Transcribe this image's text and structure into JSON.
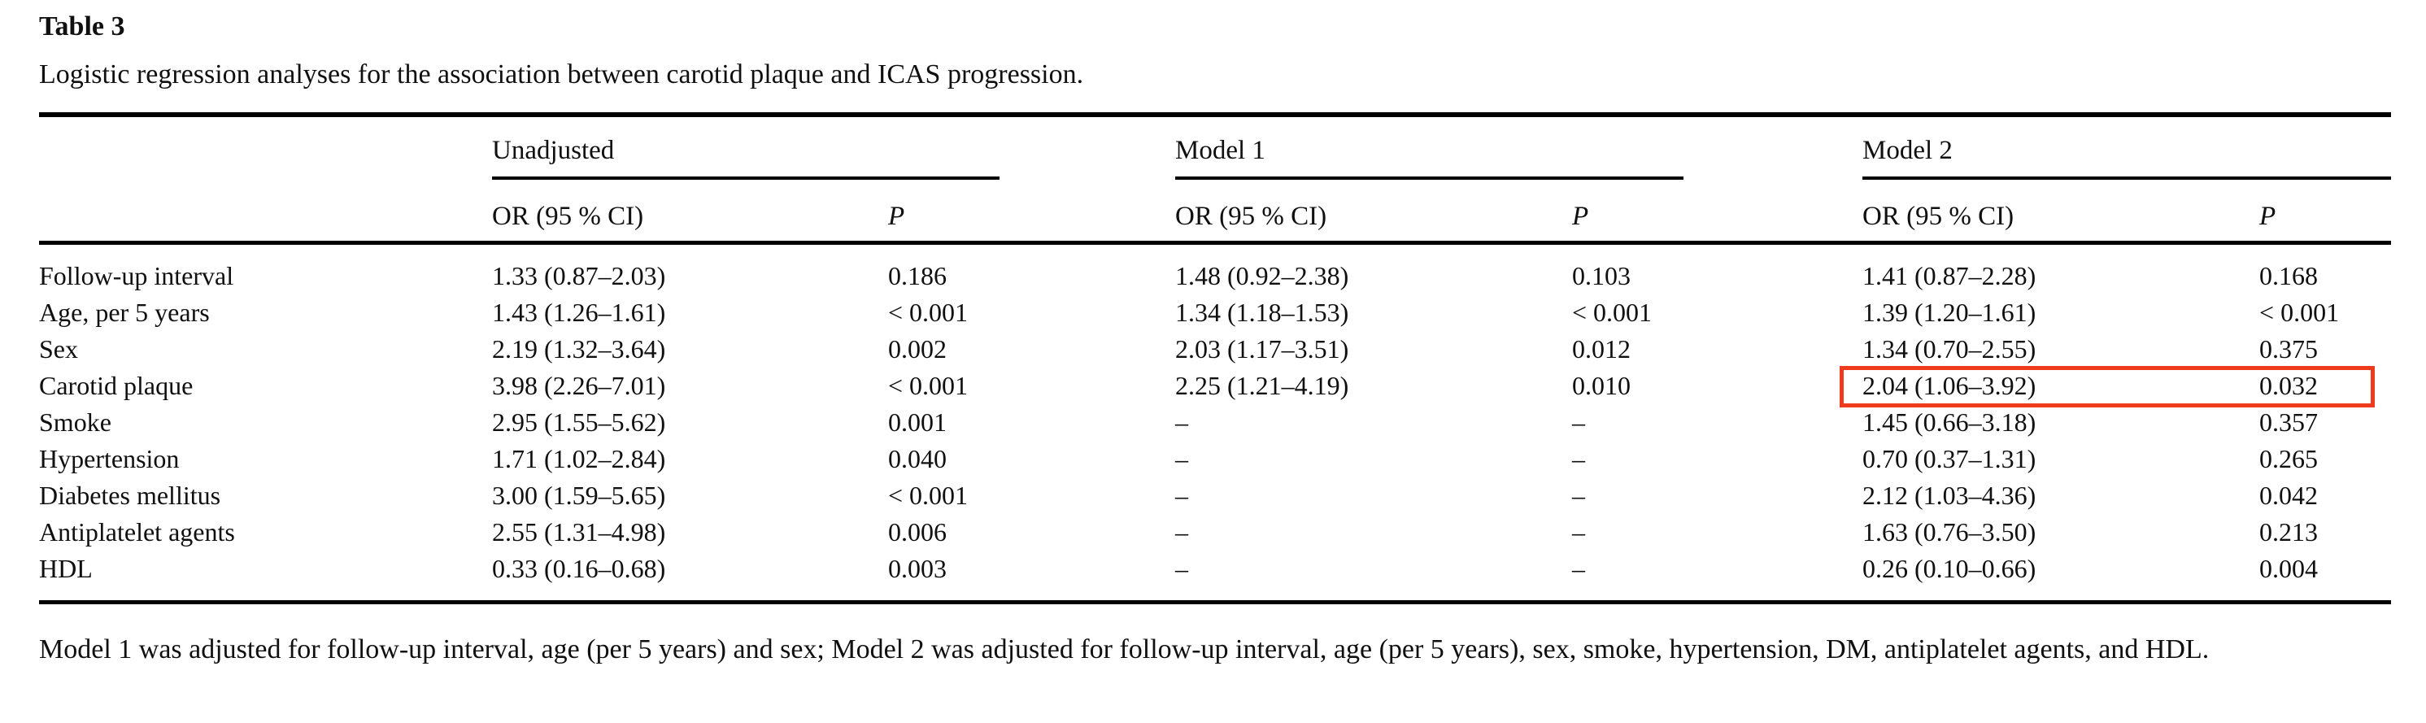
{
  "table": {
    "label": "Table 3",
    "caption": "Logistic regression analyses for the association between carotid plaque and ICAS progression.",
    "column_groups": [
      {
        "label": "Unadjusted",
        "or_header": "OR (95 % CI)",
        "p_header": "P"
      },
      {
        "label": "Model 1",
        "or_header": "OR (95 % CI)",
        "p_header": "P"
      },
      {
        "label": "Model 2",
        "or_header": "OR (95 % CI)",
        "p_header": "P"
      }
    ],
    "rows": [
      {
        "label": "Follow-up interval",
        "unadjusted_or": "1.33 (0.87–2.03)",
        "unadjusted_p": "0.186",
        "model1_or": "1.48 (0.92–2.38)",
        "model1_p": "0.103",
        "model2_or": "1.41 (0.87–2.28)",
        "model2_p": "0.168"
      },
      {
        "label": "Age, per 5 years",
        "unadjusted_or": "1.43 (1.26–1.61)",
        "unadjusted_p": "< 0.001",
        "model1_or": "1.34 (1.18–1.53)",
        "model1_p": "< 0.001",
        "model2_or": "1.39 (1.20–1.61)",
        "model2_p": "< 0.001"
      },
      {
        "label": "Sex",
        "unadjusted_or": "2.19 (1.32–3.64)",
        "unadjusted_p": "0.002",
        "model1_or": "2.03 (1.17–3.51)",
        "model1_p": "0.012",
        "model2_or": "1.34 (0.70–2.55)",
        "model2_p": "0.375"
      },
      {
        "label": "Carotid plaque",
        "unadjusted_or": "3.98 (2.26–7.01)",
        "unadjusted_p": "< 0.001",
        "model1_or": "2.25 (1.21–4.19)",
        "model1_p": "0.010",
        "model2_or": "2.04 (1.06–3.92)",
        "model2_p": "0.032"
      },
      {
        "label": "Smoke",
        "unadjusted_or": "2.95 (1.55–5.62)",
        "unadjusted_p": "0.001",
        "model1_or": "–",
        "model1_p": "–",
        "model2_or": "1.45 (0.66–3.18)",
        "model2_p": "0.357"
      },
      {
        "label": "Hypertension",
        "unadjusted_or": "1.71 (1.02–2.84)",
        "unadjusted_p": "0.040",
        "model1_or": "–",
        "model1_p": "–",
        "model2_or": "0.70 (0.37–1.31)",
        "model2_p": "0.265"
      },
      {
        "label": "Diabetes mellitus",
        "unadjusted_or": "3.00 (1.59–5.65)",
        "unadjusted_p": "< 0.001",
        "model1_or": "–",
        "model1_p": "–",
        "model2_or": "2.12 (1.03–4.36)",
        "model2_p": "0.042"
      },
      {
        "label": "Antiplatelet agents",
        "unadjusted_or": "2.55 (1.31–4.98)",
        "unadjusted_p": "0.006",
        "model1_or": "–",
        "model1_p": "–",
        "model2_or": "1.63 (0.76–3.50)",
        "model2_p": "0.213"
      },
      {
        "label": "HDL",
        "unadjusted_or": "0.33 (0.16–0.68)",
        "unadjusted_p": "0.003",
        "model1_or": "–",
        "model1_p": "–",
        "model2_or": "0.26 (0.10–0.66)",
        "model2_p": "0.004"
      }
    ],
    "footnote": "Model 1 was adjusted for follow-up interval, age (per 5 years) and sex; Model 2 was adjusted for follow-up interval, age (per 5 years), sex, smoke, hypertension, DM, antiplatelet agents, and HDL.",
    "highlight": {
      "row_index": 3,
      "row_label": "Carotid plaque",
      "group": "model2",
      "color": "#ee3a1d"
    }
  }
}
